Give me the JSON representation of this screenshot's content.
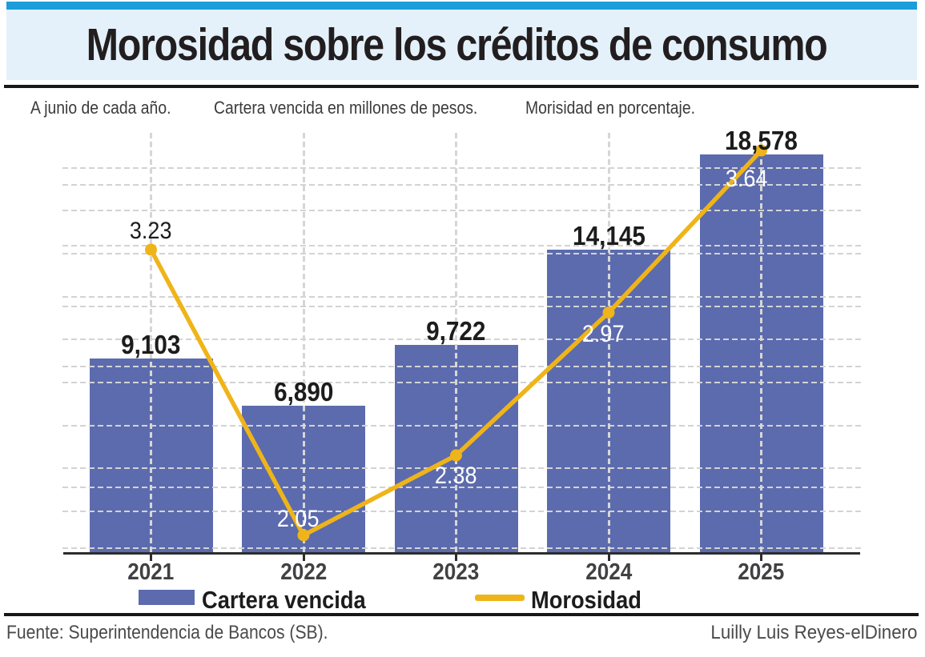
{
  "header": {
    "title": "Morosidad sobre los créditos de consumo"
  },
  "subtitle": {
    "note1": "A junio de cada año.",
    "note2": "Cartera vencida en millones de pesos.",
    "note3": "Morisidad en porcentaje."
  },
  "chart_data": {
    "type": "bar+line",
    "categories": [
      "2021",
      "2022",
      "2023",
      "2024",
      "2025"
    ],
    "series": [
      {
        "name": "Cartera vencida",
        "type": "bar",
        "values": [
          9103,
          6890,
          9722,
          14145,
          18578
        ],
        "labels": [
          "9,103",
          "6,890",
          "9,722",
          "14,145",
          "18,578"
        ],
        "unit": "millones de pesos",
        "color": "#5c6bae"
      },
      {
        "name": "Morosidad",
        "type": "line",
        "values": [
          3.23,
          2.05,
          2.38,
          2.97,
          3.64
        ],
        "labels": [
          "3.23",
          "2.05",
          "2.38",
          "2.97",
          "3.64"
        ],
        "unit": "porcentaje",
        "color": "#efb419"
      }
    ],
    "title": "Morosidad sobre los créditos de consumo",
    "xlabel": "",
    "ylabel": "",
    "grid": true,
    "legend_position": "bottom"
  },
  "legend": {
    "bar_label": "Cartera vencida",
    "line_label": "Morosidad"
  },
  "footer": {
    "source": "Fuente: Superintendencia de Bancos (SB).",
    "credit": "Luilly Luis Reyes-elDinero"
  },
  "colors": {
    "bar": "#5c6bae",
    "line": "#efb419",
    "accent_strip": "#1b9dd9",
    "title_bg": "#e4f1fa",
    "label_on_bar": "#ffffff",
    "label_dark": "#1c1c1c"
  }
}
